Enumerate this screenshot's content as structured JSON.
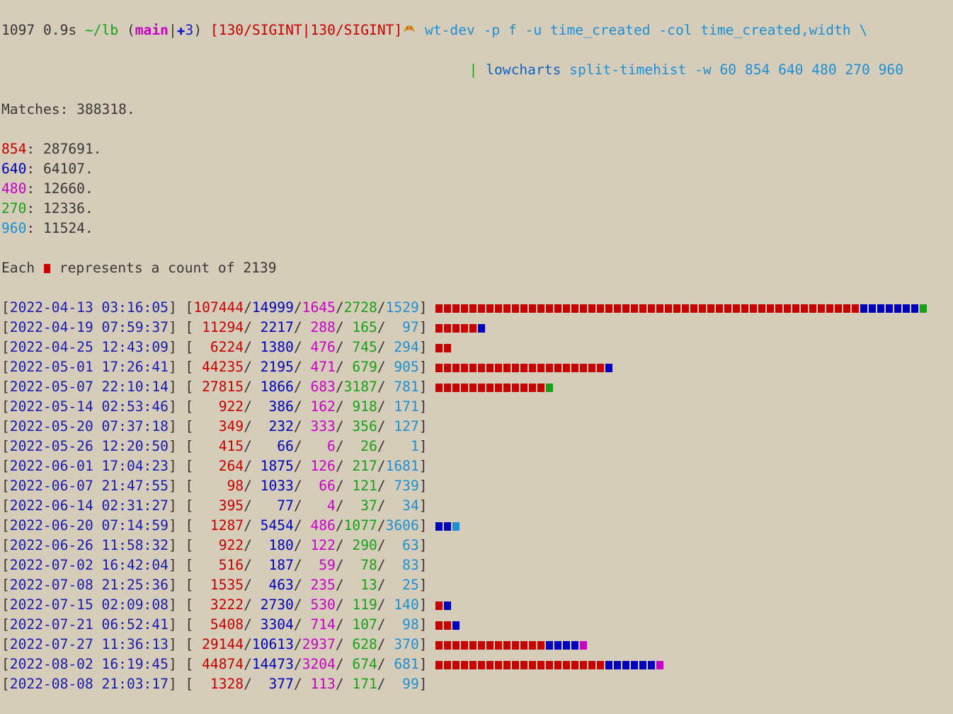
{
  "prompt": {
    "history": "1097",
    "duration": "0.9s",
    "cwd": "~/lb",
    "git_open": "(",
    "branch": "main",
    "git_sep": "|",
    "git_changes": "✚3",
    "git_close": ")",
    "status": "[130/SIGINT|130/SIGINT]",
    "command": "wt-dev -p f -u time_created -col time_created,width \\",
    "pipe": "|",
    "command2_name": "lowcharts",
    "command2_args": "split-timehist -w 60 854 640 480 270 960"
  },
  "punct": {
    "colon": ": ",
    "period": ".",
    "open": "[",
    "sep": "/",
    "close": "]"
  },
  "summary": {
    "matches_label": "Matches",
    "matches": 388318,
    "series": [
      {
        "name": "854",
        "color": "#c80000",
        "total": 287691
      },
      {
        "name": "640",
        "color": "#0000c0",
        "total": 64107
      },
      {
        "name": "480",
        "color": "#c800c8",
        "total": 12660
      },
      {
        "name": "270",
        "color": "#18a018",
        "total": 12336
      },
      {
        "name": "960",
        "color": "#1e8fd2",
        "total": 11524
      }
    ],
    "scale_before": "Each",
    "scale_after": "represents a count of",
    "scale": 2139
  },
  "rows": [
    {
      "time": "2022-04-13 03:16:05",
      "counts": [
        107444,
        14999,
        1645,
        2728,
        1529
      ]
    },
    {
      "time": "2022-04-19 07:59:37",
      "counts": [
        11294,
        2217,
        288,
        165,
        97
      ]
    },
    {
      "time": "2022-04-25 12:43:09",
      "counts": [
        6224,
        1380,
        476,
        745,
        294
      ]
    },
    {
      "time": "2022-05-01 17:26:41",
      "counts": [
        44235,
        2195,
        471,
        679,
        905
      ]
    },
    {
      "time": "2022-05-07 22:10:14",
      "counts": [
        27815,
        1866,
        683,
        3187,
        781
      ]
    },
    {
      "time": "2022-05-14 02:53:46",
      "counts": [
        922,
        386,
        162,
        918,
        171
      ]
    },
    {
      "time": "2022-05-20 07:37:18",
      "counts": [
        349,
        232,
        333,
        356,
        127
      ]
    },
    {
      "time": "2022-05-26 12:20:50",
      "counts": [
        415,
        66,
        6,
        26,
        1
      ]
    },
    {
      "time": "2022-06-01 17:04:23",
      "counts": [
        264,
        1875,
        126,
        217,
        1681
      ]
    },
    {
      "time": "2022-06-07 21:47:55",
      "counts": [
        98,
        1033,
        66,
        121,
        739
      ]
    },
    {
      "time": "2022-06-14 02:31:27",
      "counts": [
        395,
        77,
        4,
        37,
        34
      ]
    },
    {
      "time": "2022-06-20 07:14:59",
      "counts": [
        1287,
        5454,
        486,
        1077,
        3606
      ]
    },
    {
      "time": "2022-06-26 11:58:32",
      "counts": [
        922,
        180,
        122,
        290,
        63
      ]
    },
    {
      "time": "2022-07-02 16:42:04",
      "counts": [
        516,
        187,
        59,
        78,
        83
      ]
    },
    {
      "time": "2022-07-08 21:25:36",
      "counts": [
        1535,
        463,
        235,
        13,
        25
      ]
    },
    {
      "time": "2022-07-15 02:09:08",
      "counts": [
        3222,
        2730,
        530,
        119,
        140
      ]
    },
    {
      "time": "2022-07-21 06:52:41",
      "counts": [
        5408,
        3304,
        714,
        107,
        98
      ]
    },
    {
      "time": "2022-07-27 11:36:13",
      "counts": [
        29144,
        10613,
        2937,
        628,
        370
      ]
    },
    {
      "time": "2022-08-02 16:19:45",
      "counts": [
        44874,
        14473,
        3204,
        674,
        681
      ]
    },
    {
      "time": "2022-08-08 21:03:17",
      "counts": [
        1328,
        377,
        113,
        171,
        99
      ]
    }
  ]
}
